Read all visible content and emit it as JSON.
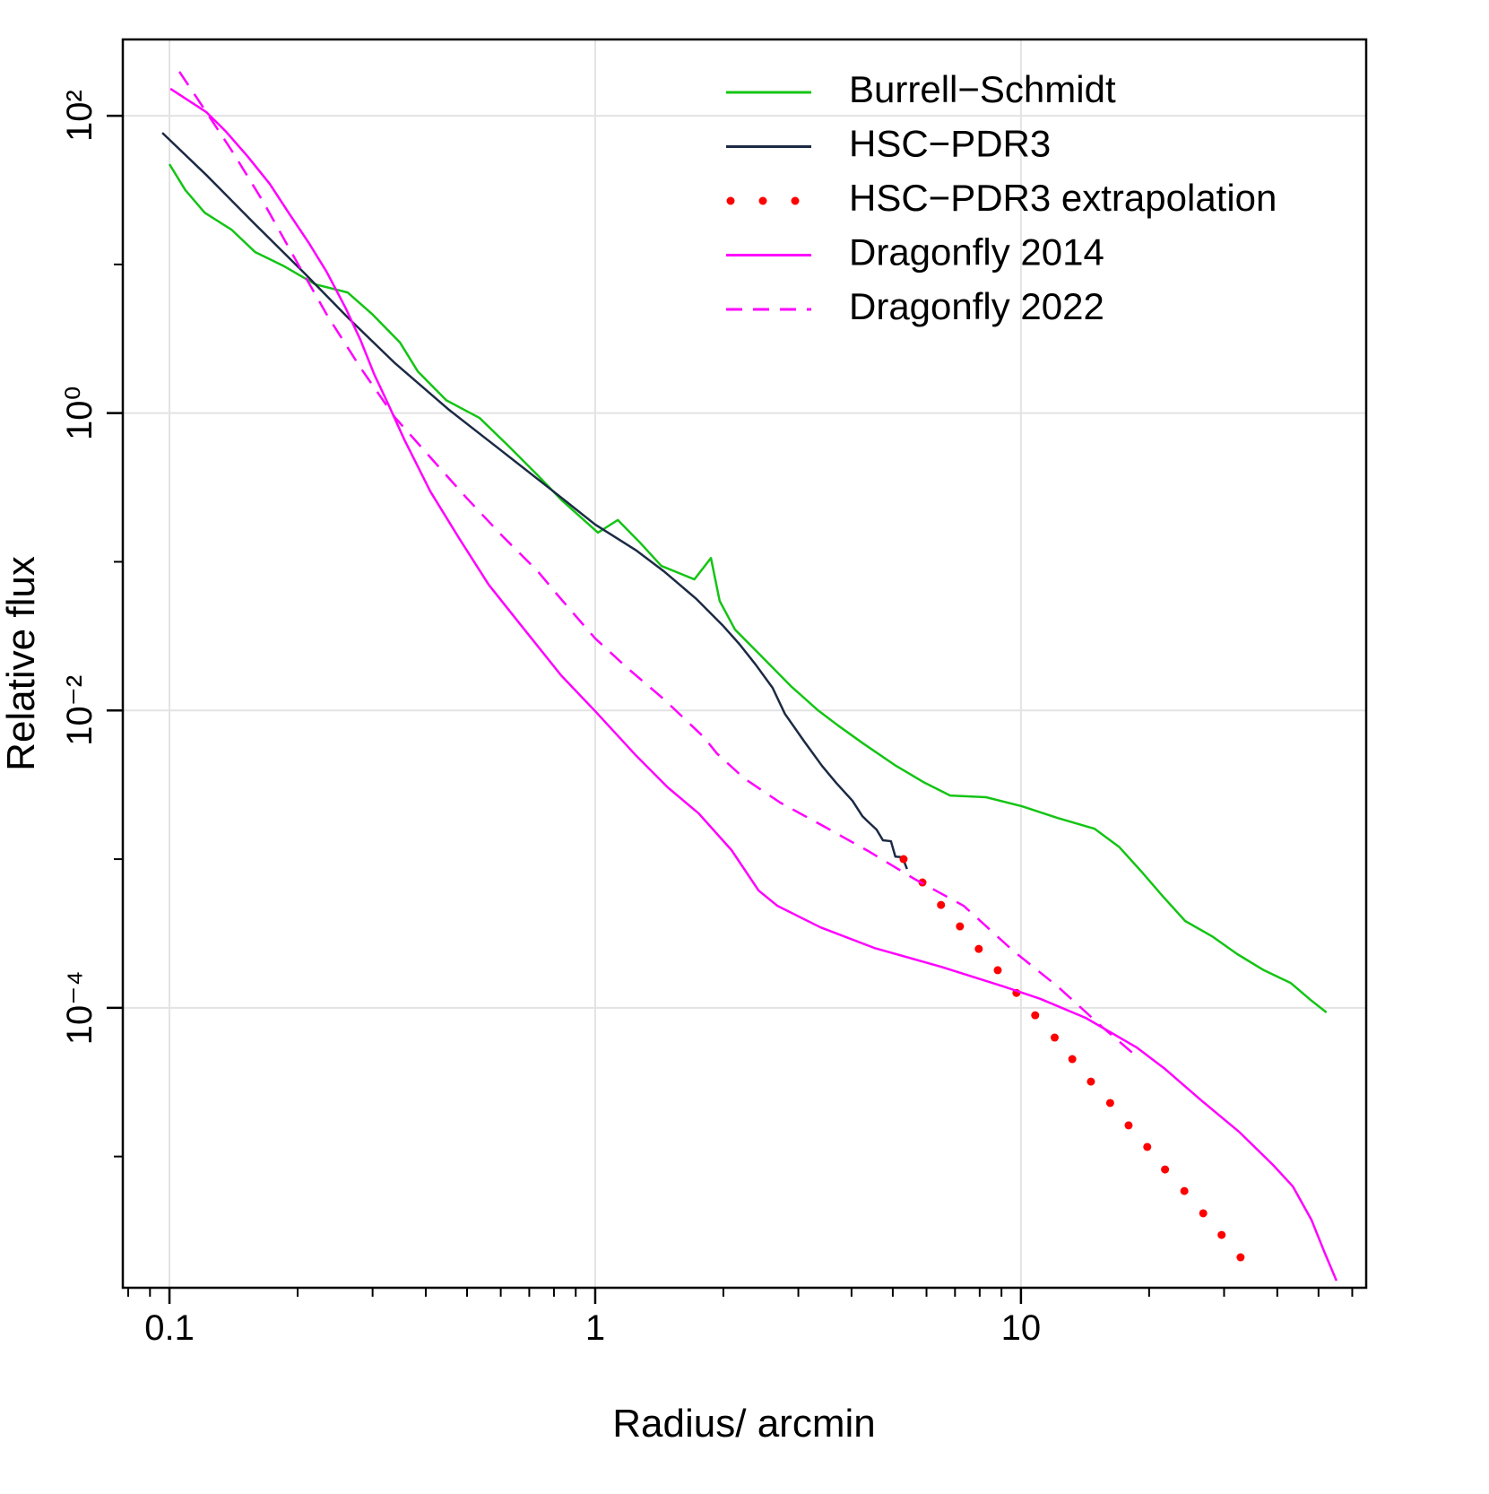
{
  "chart_data": {
    "type": "line",
    "xlabel": "Radius/ arcmin",
    "ylabel": "Relative flux",
    "xscale": "log",
    "yscale": "log",
    "xlim": [
      0.0777,
      64.7
    ],
    "ylim": [
      1.31e-06,
      326
    ],
    "xticks": [
      0.1,
      1,
      10
    ],
    "xminorticks": [
      0.08,
      0.09,
      0.2,
      0.3,
      0.4,
      0.5,
      0.6,
      0.7,
      0.8,
      0.9,
      2,
      3,
      4,
      5,
      6,
      7,
      8,
      9,
      20,
      30,
      40,
      50,
      60
    ],
    "yticks": [
      {
        "value": 100,
        "label": "10²"
      },
      {
        "value": 1,
        "label": "10⁰"
      },
      {
        "value": 0.01,
        "label": "10⁻²"
      },
      {
        "value": 0.0001,
        "label": "10⁻⁴"
      }
    ],
    "yminorticks": [
      10,
      0.1,
      0.001,
      1e-05
    ],
    "grid": true,
    "legend": "top-right",
    "series": [
      {
        "name": "Burrell−Schmidt",
        "color": "#14c414",
        "style": "solid",
        "x": [
          0.1,
          0.109,
          0.121,
          0.14,
          0.159,
          0.185,
          0.22,
          0.262,
          0.299,
          0.348,
          0.383,
          0.447,
          0.535,
          0.625,
          0.733,
          0.836,
          1.015,
          1.13,
          1.27,
          1.43,
          1.71,
          1.87,
          1.96,
          2.13,
          2.46,
          2.88,
          3.34,
          3.72,
          4.26,
          5.05,
          5.9,
          6.82,
          8.28,
          10.05,
          12.2,
          14.9,
          17.0,
          19.2,
          21.5,
          24.3,
          28.1,
          32.2,
          37.2,
          43.0,
          47.9,
          52.2
        ],
        "values": [
          47.2,
          31.6,
          22.3,
          17.1,
          12.1,
          9.8,
          7.35,
          6.48,
          4.65,
          2.98,
          1.91,
          1.22,
          0.928,
          0.603,
          0.381,
          0.258,
          0.157,
          0.191,
          0.136,
          0.0938,
          0.0762,
          0.106,
          0.0546,
          0.035,
          0.0231,
          0.0146,
          0.01,
          0.00792,
          0.006,
          0.0043,
          0.0033,
          0.00268,
          0.00261,
          0.00227,
          0.00189,
          0.0016,
          0.00121,
          0.000823,
          0.000566,
          0.000384,
          0.000303,
          0.00023,
          0.000179,
          0.000147,
          0.000113,
          9.31e-05
        ]
      },
      {
        "name": "HSC−PDR3",
        "color": "#1c2a44",
        "style": "solid",
        "x": [
          0.0962,
          0.122,
          0.159,
          0.208,
          0.265,
          0.339,
          0.454,
          0.604,
          0.789,
          1.0,
          1.25,
          1.45,
          1.73,
          1.99,
          2.18,
          2.38,
          2.61,
          2.79,
          3.09,
          3.41,
          3.68,
          4.02,
          4.24,
          4.37,
          4.58,
          4.74,
          4.95,
          5.07,
          5.27,
          5.4
        ],
        "values": [
          76.8,
          40.0,
          18.6,
          8.68,
          4.27,
          2.16,
          1.05,
          0.555,
          0.305,
          0.178,
          0.119,
          0.0863,
          0.0561,
          0.0375,
          0.028,
          0.0204,
          0.0142,
          0.00949,
          0.00625,
          0.00424,
          0.00326,
          0.00247,
          0.00195,
          0.00179,
          0.00158,
          0.00134,
          0.00132,
          0.00104,
          0.00103,
          0.000858
        ]
      },
      {
        "name": "HSC−PDR3 extrapolation",
        "color": "#ff0000",
        "style": "dotted",
        "x": [
          5.3,
          5.87,
          6.49,
          7.19,
          7.96,
          8.82,
          9.76,
          10.8,
          12.0,
          13.2,
          14.6,
          16.2,
          17.9,
          19.8,
          21.8,
          24.2,
          26.8,
          29.6,
          32.8
        ],
        "values": [
          0.001,
          0.000697,
          0.000492,
          0.000353,
          0.000249,
          0.000179,
          0.000126,
          8.91e-05,
          6.31e-05,
          4.52e-05,
          3.19e-05,
          2.29e-05,
          1.62e-05,
          1.16e-05,
          8.18e-06,
          5.86e-06,
          4.15e-06,
          2.97e-06,
          2.1e-06
        ]
      },
      {
        "name": "Dragonfly 2014",
        "color": "#ff00ff",
        "style": "solid",
        "x": [
          0.1005,
          0.122,
          0.136,
          0.153,
          0.172,
          0.191,
          0.212,
          0.234,
          0.259,
          0.281,
          0.303,
          0.326,
          0.356,
          0.41,
          0.479,
          0.562,
          0.659,
          0.832,
          1.0,
          1.25,
          1.48,
          1.75,
          2.09,
          2.42,
          2.68,
          3.38,
          4.52,
          6.49,
          9.12,
          11.1,
          14.2,
          18.7,
          21.8,
          26.5,
          32.5,
          39.1,
          43.5,
          48.1,
          51.7,
          55.1
        ],
        "values": [
          152,
          106,
          77.8,
          52.8,
          34.8,
          22.0,
          14.1,
          8.91,
          5.12,
          3.1,
          1.81,
          1.16,
          0.665,
          0.297,
          0.144,
          0.0702,
          0.0396,
          0.0172,
          0.00989,
          0.00494,
          0.00304,
          0.00203,
          0.00115,
          0.000615,
          0.000485,
          0.000348,
          0.000253,
          0.000189,
          0.000139,
          0.000115,
          8.55e-05,
          5.41e-05,
          3.88e-05,
          2.39e-05,
          1.47e-05,
          8.77e-06,
          6.3e-06,
          3.76e-06,
          2.25e-06,
          1.46e-06
        ]
      },
      {
        "name": "Dragonfly 2022",
        "color": "#ff00ff",
        "style": "dashed",
        "x": [
          0.1055,
          0.122,
          0.141,
          0.166,
          0.198,
          0.235,
          0.281,
          0.338,
          0.41,
          0.498,
          0.604,
          0.733,
          0.828,
          1.0,
          1.19,
          1.45,
          1.8,
          1.93,
          2.24,
          2.72,
          3.46,
          4.41,
          5.62,
          7.34,
          9.57,
          12.2,
          15.5,
          18.7
        ],
        "values": [
          198,
          106,
          56.6,
          26.4,
          10.7,
          4.52,
          2.02,
          0.941,
          0.504,
          0.27,
          0.15,
          0.0863,
          0.0569,
          0.0305,
          0.0193,
          0.0119,
          0.00661,
          0.00515,
          0.00349,
          0.0024,
          0.00165,
          0.00112,
          0.000736,
          0.000485,
          0.000243,
          0.000139,
          7.45e-05,
          4.71e-05
        ]
      }
    ]
  }
}
